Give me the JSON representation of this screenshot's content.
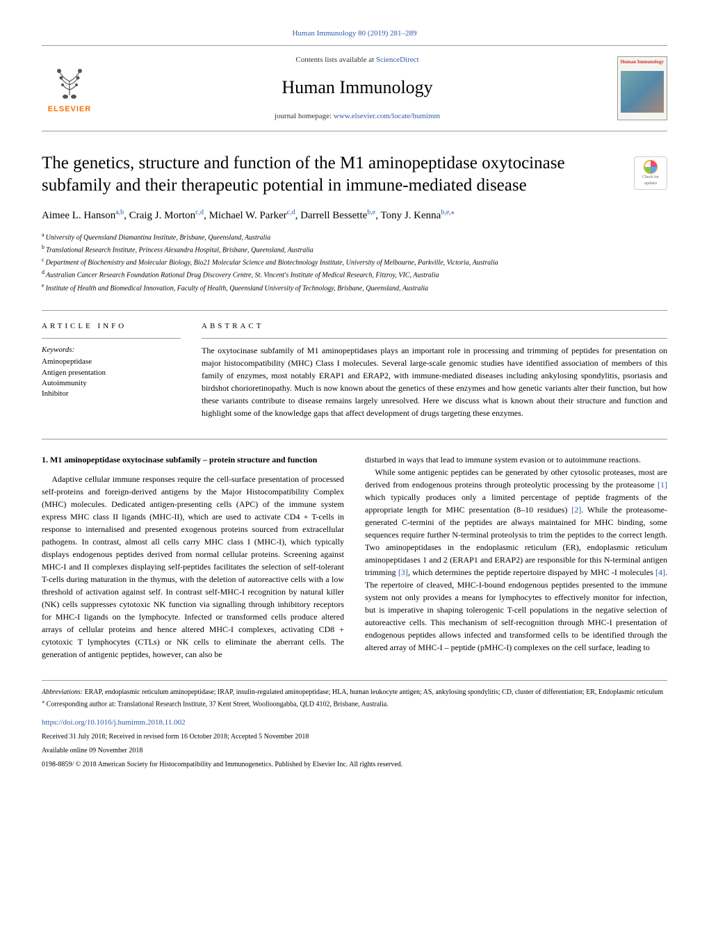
{
  "top_link_text": "Human Immunology 80 (2019) 281–289",
  "header": {
    "contents_prefix": "Contents lists available at ",
    "contents_link": "ScienceDirect",
    "journal_name": "Human Immunology",
    "homepage_prefix": "journal homepage: ",
    "homepage_link": "www.elsevier.com/locate/humimm",
    "elsevier_label": "ELSEVIER",
    "cover_title": "Human Immunology"
  },
  "badge": {
    "line1": "Check for",
    "line2": "updates"
  },
  "article": {
    "title": "The genetics, structure and function of the M1 aminopeptidase oxytocinase subfamily and their therapeutic potential in immune-mediated disease",
    "authors_html": "Aimee L. Hanson<sup>a,b</sup>, Craig J. Morton<sup>c,d</sup>, Michael W. Parker<sup>c,d</sup>, Darrell Bessette<sup>b,e</sup>, Tony J. Kenna<sup>b,e,</sup><sup class=\"star\">⁎</sup>"
  },
  "affiliations": [
    {
      "sup": "a",
      "text": "University of Queensland Diamantina Institute, Brisbane, Queensland, Australia"
    },
    {
      "sup": "b",
      "text": "Translational Research Institute, Princess Alexandra Hospital, Brisbane, Queensland, Australia"
    },
    {
      "sup": "c",
      "text": "Department of Biochemistry and Molecular Biology, Bio21 Molecular Science and Biotechnology Institute, University of Melbourne, Parkville, Victoria, Australia"
    },
    {
      "sup": "d",
      "text": "Australian Cancer Research Foundation Rational Drug Discovery Centre, St. Vincent's Institute of Medical Research, Fitzroy, VIC, Australia"
    },
    {
      "sup": "e",
      "text": "Institute of Health and Biomedical Innovation, Faculty of Health, Queensland University of Technology, Brisbane, Queensland, Australia"
    }
  ],
  "info": {
    "heading": "ARTICLE INFO",
    "keywords_label": "Keywords:",
    "keywords": [
      "Aminopeptidase",
      "Antigen presentation",
      "Autoimmunity",
      "Inhibitor"
    ]
  },
  "abstract": {
    "heading": "ABSTRACT",
    "text": "The oxytocinase subfamily of M1 aminopeptidases plays an important role in processing and trimming of peptides for presentation on major histocompatibility (MHC) Class I molecules. Several large-scale genomic studies have identified association of members of this family of enzymes, most notably ERAP1 and ERAP2, with immune-mediated diseases including ankylosing spondylitis, psoriasis and birdshot chorioretinopathy. Much is now known about the genetics of these enzymes and how genetic variants alter their function, but how these variants contribute to disease remains largely unresolved. Here we discuss what is known about their structure and function and highlight some of the knowledge gaps that affect development of drugs targeting these enzymes."
  },
  "body": {
    "heading": "1. M1 aminopeptidase oxytocinase subfamily – protein structure and function",
    "para1": "Adaptive cellular immune responses require the cell-surface presentation of processed self-proteins and foreign-derived antigens by the Major Histocompatibility Complex (MHC) molecules. Dedicated antigen-presenting cells (APC) of the immune system express MHC class II ligands (MHC-II), which are used to activate CD4 + T-cells in response to internalised and presented exogenous proteins sourced from extracellular pathogens. In contrast, almost all cells carry MHC class I (MHC-I), which typically displays endogenous peptides derived from normal cellular proteins. Screening against MHC-I and II complexes displaying self-peptides facilitates the selection of self-tolerant T-cells during maturation in the thymus, with the deletion of autoreactive cells with a low threshold of activation against self. In contrast self-MHC-I recognition by natural killer (NK) cells suppresses cytotoxic NK function via signalling through inhibitory receptors for MHC-I ligands on the lymphocyte. Infected or transformed cells produce altered arrays of cellular proteins and hence altered MHC-I complexes, activating CD8 + cytotoxic T lymphocytes (CTLs) or NK cells to eliminate the aberrant cells. The generation of antigenic peptides, however, can also be",
    "para2": "disturbed in ways that lead to immune system evasion or to autoimmune reactions.",
    "para3_pre": "While some antigenic peptides can be generated by other cytosolic proteases, most are derived from endogenous proteins through proteolytic processing by the proteasome ",
    "ref1": "[1]",
    "para3_mid": " which typically produces only a limited percentage of peptide fragments of the appropriate length for MHC presentation (8–10 residues) ",
    "ref2": "[2]",
    "para3_mid2": ". While the proteasome-generated C-termini of the peptides are always maintained for MHC binding, some sequences require further N-terminal proteolysis to trim the peptides to the correct length. Two aminopeptidases in the endoplasmic reticulum (ER), endoplasmic reticulum aminopeptidases 1 and 2 (ERAP1 and ERAP2) are responsible for this N-terminal antigen trimming ",
    "ref3": "[3]",
    "para3_mid3": ", which determines the peptide repertoire dispayed by MHC -I molecules ",
    "ref4": "[4]",
    "para3_post": ". The repertoire of cleaved, MHC-I-bound endogenous peptides presented to the immune system not only provides a means for lymphocytes to effectively monitor for infection, but is imperative in shaping tolerogenic T-cell populations in the negative selection of autoreactive cells. This mechanism of self-recognition through MHC-I presentation of endogenous peptides allows infected and transformed cells to be identified through the altered array of MHC-I – peptide (pMHC-I) complexes on the cell surface, leading to"
  },
  "footer": {
    "abbrev_label": "Abbreviations:",
    "abbrev_text": " ERAP, endoplasmic reticulum aminopeptidase; IRAP, insulin-regulated aminopeptidase; HLA, human leukocyte antigen; AS, ankylosing spondylitis; CD, cluster of differentiation; ER, Endoplasmic reticulum",
    "corresponding": "Corresponding author at: Translational Research Institute, 37 Kent Street, Woolloongabba, QLD 4102, Brisbane, Australia.",
    "doi": "https://doi.org/10.1016/j.humimm.2018.11.002",
    "received": "Received 31 July 2018; Received in revised form 16 October 2018; Accepted 5 November 2018",
    "available": "Available online 09 November 2018",
    "copyright": "0198-8859/ © 2018 American Society for Histocompatibility and Immunogenetics. Published by Elsevier Inc. All rights reserved."
  },
  "colors": {
    "link": "#2e5aac",
    "elsevier_orange": "#ff6b00",
    "rule": "#999999",
    "cover_red": "#cc3333"
  }
}
